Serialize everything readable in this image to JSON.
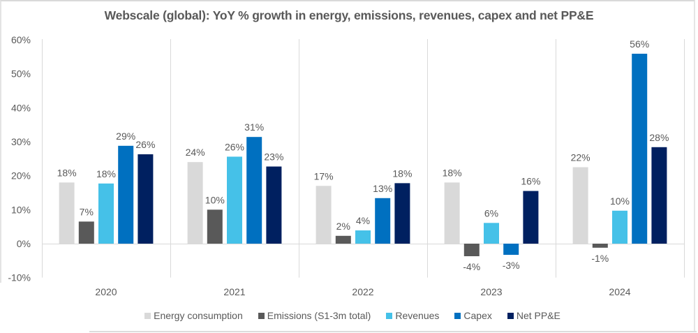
{
  "chart_data": {
    "type": "bar",
    "title": "Webscale (global): YoY % growth in energy, emissions, revenues, capex and net PP&E",
    "xlabel": "",
    "ylabel": "",
    "categories": [
      "2020",
      "2021",
      "2022",
      "2023",
      "2024"
    ],
    "ylim": [
      -10,
      60
    ],
    "yticks": [
      -10,
      0,
      10,
      20,
      30,
      40,
      50,
      60
    ],
    "ytick_labels": [
      "-10%",
      "0%",
      "10%",
      "20%",
      "30%",
      "40%",
      "50%",
      "60%"
    ],
    "value_suffix": "%",
    "grid": "vertical category separators and zero line",
    "legend_position": "bottom",
    "series": [
      {
        "name": "Energy consumption",
        "color": "#D9D9D9",
        "values": [
          18,
          24,
          17,
          18,
          22
        ]
      },
      {
        "name": "Emissions (S1-3m total)",
        "color": "#595959",
        "values": [
          7,
          10,
          2,
          -4,
          -1
        ]
      },
      {
        "name": "Revenues",
        "color": "#45C1E8",
        "values": [
          18,
          26,
          4,
          6,
          10
        ]
      },
      {
        "name": "Capex",
        "color": "#0070C0",
        "values": [
          29,
          31,
          13,
          -3,
          56
        ]
      },
      {
        "name": "Net PP&E",
        "color": "#002060",
        "values": [
          26,
          23,
          18,
          16,
          28
        ]
      }
    ],
    "bar_values_precise": [
      [
        18,
        24,
        17,
        18,
        22.5
      ],
      [
        6.5,
        10,
        2.3,
        -3.7,
        -1.2
      ],
      [
        17.7,
        25.6,
        3.9,
        6.1,
        9.7
      ],
      [
        28.8,
        31.4,
        13.4,
        -3.3,
        55.9
      ],
      [
        26.3,
        22.7,
        17.8,
        15.5,
        28.4
      ]
    ]
  }
}
